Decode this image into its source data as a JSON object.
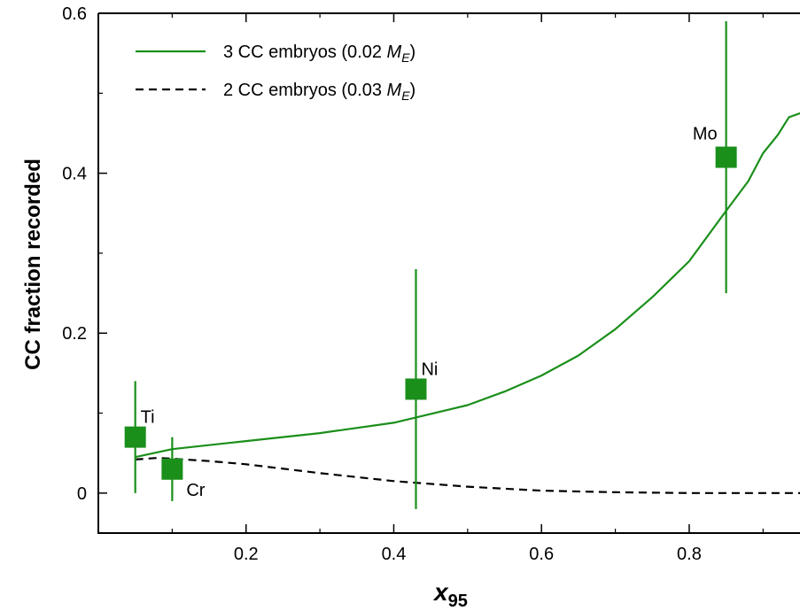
{
  "chart_data": {
    "type": "line",
    "xlabel": "x",
    "xlabel_sub": "95",
    "ylabel": "CC fraction recorded",
    "xlim": [
      0.0,
      0.95
    ],
    "ylim": [
      -0.05,
      0.6
    ],
    "x_ticks": [
      0.2,
      0.4,
      0.6,
      0.8
    ],
    "x_tick_labels": [
      "0.2",
      "0.4",
      "0.6",
      "0.8"
    ],
    "y_ticks": [
      0,
      0.2,
      0.4,
      0.6
    ],
    "y_tick_labels": [
      "0",
      "0.2",
      "0.4",
      "0.6"
    ],
    "grid": false,
    "legend_position": "top-left",
    "series": [
      {
        "name": "3 CC embryos (0.02 M_E)",
        "legend_prefix": "3 CC embryos (0.02 ",
        "legend_italic": "M",
        "legend_sub": "E",
        "legend_suffix": ")",
        "style": "solid",
        "color": "#1a8f1a",
        "x": [
          0.05,
          0.1,
          0.2,
          0.3,
          0.4,
          0.5,
          0.55,
          0.6,
          0.65,
          0.7,
          0.75,
          0.8,
          0.85,
          0.88,
          0.9,
          0.92,
          0.935,
          0.95
        ],
        "y": [
          0.045,
          0.055,
          0.065,
          0.075,
          0.088,
          0.11,
          0.127,
          0.147,
          0.172,
          0.205,
          0.245,
          0.29,
          0.353,
          0.39,
          0.425,
          0.448,
          0.47,
          0.475
        ]
      },
      {
        "name": "2 CC embryos (0.03 M_E)",
        "legend_prefix": "2 CC embryos (0.03 ",
        "legend_italic": "M",
        "legend_sub": "E",
        "legend_suffix": ")",
        "style": "dashed",
        "color": "#000000",
        "x": [
          0.05,
          0.08,
          0.1,
          0.15,
          0.2,
          0.3,
          0.4,
          0.5,
          0.6,
          0.7,
          0.8,
          0.9,
          0.95
        ],
        "y": [
          0.042,
          0.044,
          0.043,
          0.04,
          0.036,
          0.025,
          0.015,
          0.008,
          0.003,
          0.001,
          0.0,
          0.0,
          0.0
        ]
      }
    ],
    "points": [
      {
        "label": "Ti",
        "x": 0.05,
        "y": 0.07,
        "err_low": 0.0,
        "err_high": 0.14,
        "label_side": "upper-right"
      },
      {
        "label": "Cr",
        "x": 0.1,
        "y": 0.03,
        "err_low": -0.01,
        "err_high": 0.07,
        "label_side": "lower-right"
      },
      {
        "label": "Ni",
        "x": 0.43,
        "y": 0.13,
        "err_low": -0.02,
        "err_high": 0.28,
        "label_side": "upper-right"
      },
      {
        "label": "Mo",
        "x": 0.85,
        "y": 0.42,
        "err_low": 0.25,
        "err_high": 0.59,
        "label_side": "upper-left"
      }
    ],
    "point_color": "#1a8f1a"
  }
}
